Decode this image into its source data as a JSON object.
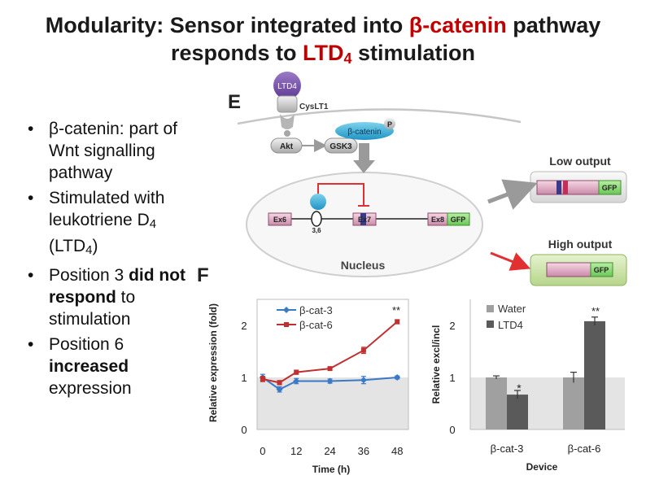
{
  "slide": {
    "title_line1_pre": "Modularity: Sensor integrated into ",
    "title_line1_red": "β-catenin",
    "title_line1_post": " pathway",
    "title_line2_pre": "responds to ",
    "title_line2_red": "LTD",
    "title_line2_sub": "4",
    "title_line2_post": " stimulation"
  },
  "bullets": [
    {
      "text": "β-catenin: part of Wnt signalling pathway"
    },
    {
      "pre": "Stimulated with leukotriene D",
      "sub": "4",
      "mid": " (LTD",
      "sub2": "4",
      "post": ")"
    },
    {
      "pre": "Position 3 ",
      "bold": "did not respond",
      "post": " to stimulation"
    },
    {
      "pre": "Position 6 ",
      "bold": "increased",
      "post": " expression"
    }
  ],
  "panel_e": {
    "letter": "E",
    "ltd4": "LTD4",
    "receptor": "CysLT1",
    "akt": "Akt",
    "gsk3": "GSK3",
    "beta_catenin": "β-catenin",
    "phospho": "P",
    "ex6": "Ex6",
    "ex7": "Ex7",
    "ex8": "Ex8",
    "gfp": "GFP",
    "site": "3,6",
    "nucleus": "Nucleus",
    "low_output": "Low output",
    "high_output": "High output"
  },
  "panel_f": {
    "letter": "F",
    "colors": {
      "series1": "#3a78c8",
      "series2": "#c03030",
      "water": "#a0a0a0",
      "ltd4": "#5a5a5a"
    },
    "line_chart": {
      "ylabel": "Relative expression (fold)",
      "xlabel": "Time (h)",
      "yticks": [
        "0",
        "1",
        "2"
      ],
      "xticks": [
        "0",
        "12",
        "24",
        "36",
        "48"
      ],
      "legend": [
        "β-cat-3",
        "β-cat-6"
      ],
      "significance": "**"
    },
    "bar_chart": {
      "ylabel": "Relative excl/incl",
      "xlabel": "Device",
      "yticks": [
        "0",
        "1",
        "2"
      ],
      "categories": [
        "β-cat-3",
        "β-cat-6"
      ],
      "legend": [
        "Water",
        "LTD4"
      ],
      "sig_left": "*",
      "sig_right": "**"
    }
  },
  "chart_data": [
    {
      "type": "line",
      "xlabel": "Time (h)",
      "ylabel": "Relative expression (fold)",
      "ylim": [
        0,
        2.5
      ],
      "xlim": [
        -2,
        52
      ],
      "x": [
        0,
        6,
        12,
        24,
        36,
        48
      ],
      "series": [
        {
          "name": "β-cat-3",
          "values": [
            1.0,
            0.77,
            0.93,
            0.93,
            0.95,
            1.0
          ],
          "errors": [
            0.06,
            0.05,
            0.05,
            0.04,
            0.07,
            0.03
          ]
        },
        {
          "name": "β-cat-6",
          "values": [
            0.97,
            0.9,
            1.1,
            1.17,
            1.52,
            2.07
          ],
          "errors": [
            0.05,
            0.04,
            0.04,
            0.03,
            0.06,
            0.04
          ]
        }
      ],
      "legend": "top-left",
      "shaded_band": [
        0,
        1
      ]
    },
    {
      "type": "bar",
      "xlabel": "Device",
      "ylabel": "Relative excl/incl",
      "ylim": [
        0,
        2.5
      ],
      "categories": [
        "β-cat-3",
        "β-cat-6"
      ],
      "series": [
        {
          "name": "Water",
          "values": [
            1.0,
            1.0
          ],
          "errors": [
            0.03,
            0.1
          ]
        },
        {
          "name": "LTD4",
          "values": [
            0.67,
            2.08
          ],
          "errors": [
            0.08,
            0.08
          ]
        }
      ],
      "legend": "top-left"
    }
  ]
}
